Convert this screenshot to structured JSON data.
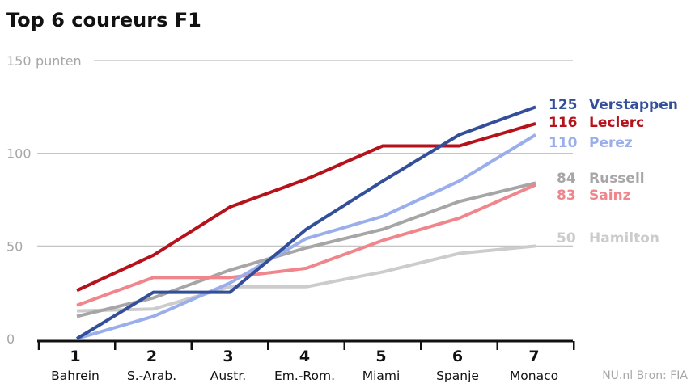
{
  "chart_data": {
    "type": "line",
    "title": "Top 6 coureurs F1",
    "y_unit": "punten",
    "ylim": [
      0,
      150
    ],
    "y_ticks": [
      0,
      50,
      100,
      150
    ],
    "grid": true,
    "legend": "inline-right",
    "x": [
      "1",
      "2",
      "3",
      "4",
      "5",
      "6",
      "7"
    ],
    "categories": [
      "Bahrein",
      "S.-Arab.",
      "Austr.",
      "Em.-Rom.",
      "Miami",
      "Spanje",
      "Monaco"
    ],
    "series": [
      {
        "name": "Hamilton",
        "color": "#cccccc",
        "values": [
          15,
          16,
          28,
          28,
          36,
          46,
          50
        ],
        "end_label": "50"
      },
      {
        "name": "Russell",
        "color": "#a6a6a6",
        "values": [
          12,
          22,
          37,
          49,
          59,
          74,
          84
        ],
        "end_label": "84"
      },
      {
        "name": "Sainz",
        "color": "#f0868c",
        "values": [
          18,
          33,
          33,
          38,
          53,
          65,
          83
        ],
        "end_label": "83"
      },
      {
        "name": "Perez",
        "color": "#99aeea",
        "values": [
          0,
          12,
          30,
          54,
          66,
          85,
          110
        ],
        "end_label": "110"
      },
      {
        "name": "Leclerc",
        "color": "#b5121b",
        "values": [
          26,
          45,
          71,
          86,
          104,
          104,
          116
        ],
        "end_label": "116"
      },
      {
        "name": "Verstappen",
        "color": "#344f9a",
        "values": [
          0,
          25,
          25,
          59,
          85,
          110,
          125
        ],
        "end_label": "125"
      }
    ],
    "source": "NU.nl Bron: FIA"
  }
}
